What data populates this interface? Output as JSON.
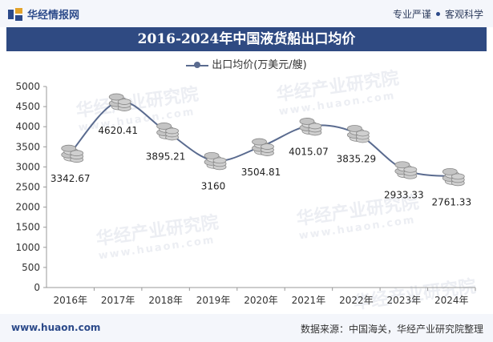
{
  "header": {
    "brand": "华经情报网",
    "slogan_left": "专业严谨",
    "slogan_right": "客观科学"
  },
  "title": "2016-2024年中国液货船出口均价",
  "legend_label": "出口均价(万美元/艘)",
  "footer": {
    "url": "www.huaon.com",
    "source": "数据来源：中国海关，华经产业研究院整理"
  },
  "watermark": {
    "text": "华经产业研究院",
    "sub": "www.huaon.com"
  },
  "chart_data": {
    "type": "line",
    "categories": [
      "2016年",
      "2017年",
      "2018年",
      "2019年",
      "2020年",
      "2021年",
      "2022年",
      "2023年",
      "2024年"
    ],
    "series": [
      {
        "name": "出口均价(万美元/艘)",
        "values": [
          3342.67,
          4620.41,
          3895.21,
          3160,
          3504.81,
          4015.07,
          3835.29,
          2933.33,
          2761.33
        ]
      }
    ],
    "value_labels": [
      "3342.67",
      "4620.41",
      "3895.21",
      "3160",
      "3504.81",
      "4015.07",
      "3835.29",
      "2933.33",
      "2761.33"
    ],
    "ylim": [
      0,
      5000
    ],
    "yticks": [
      "0",
      "500",
      "1000",
      "1500",
      "2000",
      "2500",
      "3000",
      "3500",
      "4000",
      "4500",
      "5000"
    ],
    "line_color": "#5a6b8f",
    "grid": false,
    "legend_position": "top-center"
  }
}
